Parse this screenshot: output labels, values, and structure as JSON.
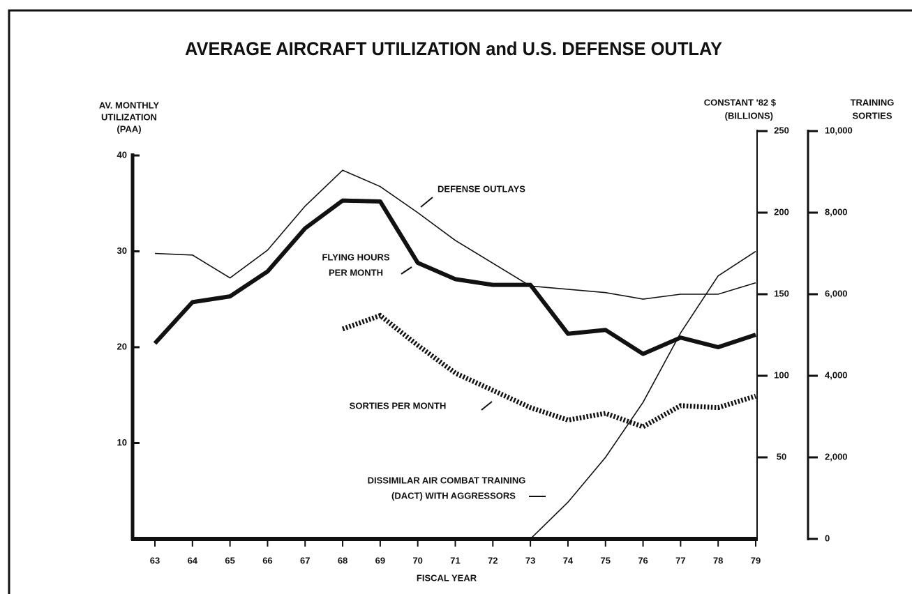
{
  "chart_data": {
    "type": "line",
    "title": "AVERAGE AIRCRAFT UTILIZATION and U.S. DEFENSE OUTLAY",
    "xlabel": "FISCAL YEAR",
    "ylabel": [
      "AV. MONTHLY",
      "UTILIZATION",
      "(PAA)"
    ],
    "y2label": [
      "CONSTANT '82 $",
      "(BILLIONS)"
    ],
    "y3label": [
      "TRAINING",
      "SORTIES"
    ],
    "x": [
      63,
      64,
      65,
      66,
      67,
      68,
      69,
      70,
      71,
      72,
      73,
      74,
      75,
      76,
      77,
      78,
      79
    ],
    "xlim": [
      63,
      79
    ],
    "ylim": [
      0,
      40
    ],
    "yticks": [
      10,
      20,
      30,
      40
    ],
    "y2lim": [
      0,
      250
    ],
    "y2ticks": [
      50,
      100,
      150,
      200,
      250
    ],
    "y3lim": [
      0,
      10000
    ],
    "y3ticks": [
      0,
      {
        "value": 2000,
        "label": "2,000"
      },
      {
        "value": 4000,
        "label": "4,000"
      },
      {
        "value": 6000,
        "label": "6,000"
      },
      {
        "value": 8000,
        "label": "8,000"
      },
      {
        "value": 10000,
        "label": "10,000"
      }
    ],
    "series": [
      {
        "name": "DEFENSE OUTLAYS",
        "axis": "y2",
        "style": "thin",
        "color": "#111111",
        "values": [
          175,
          174,
          160,
          177,
          204,
          226,
          216,
          200,
          183,
          169,
          155,
          153,
          151,
          147,
          150,
          150,
          157
        ]
      },
      {
        "name": [
          "FLYING HOURS",
          "PER MONTH"
        ],
        "axis": "y",
        "style": "thick",
        "color": "#111111",
        "values": [
          20.4,
          24.7,
          25.3,
          27.9,
          32.4,
          35.3,
          35.2,
          28.8,
          27.1,
          26.5,
          26.5,
          21.4,
          21.8,
          19.3,
          21.0,
          20.0,
          21.3
        ]
      },
      {
        "name": "SORTIES PER MONTH",
        "axis": "y",
        "style": "dotted",
        "color": "#111111",
        "values": [
          null,
          null,
          null,
          null,
          null,
          21.9,
          23.3,
          20.2,
          17.3,
          15.5,
          13.7,
          12.4,
          13.1,
          11.7,
          13.9,
          13.7,
          14.9
        ]
      },
      {
        "name": [
          "DISSIMILAR AIR COMBAT TRAINING",
          "(DACT) WITH AGGRESSORS"
        ],
        "axis": "y3",
        "style": "thin",
        "color": "#111111",
        "values": [
          null,
          null,
          null,
          null,
          null,
          null,
          null,
          null,
          null,
          null,
          0,
          900,
          2000,
          3350,
          5050,
          6450,
          7050
        ]
      }
    ]
  }
}
